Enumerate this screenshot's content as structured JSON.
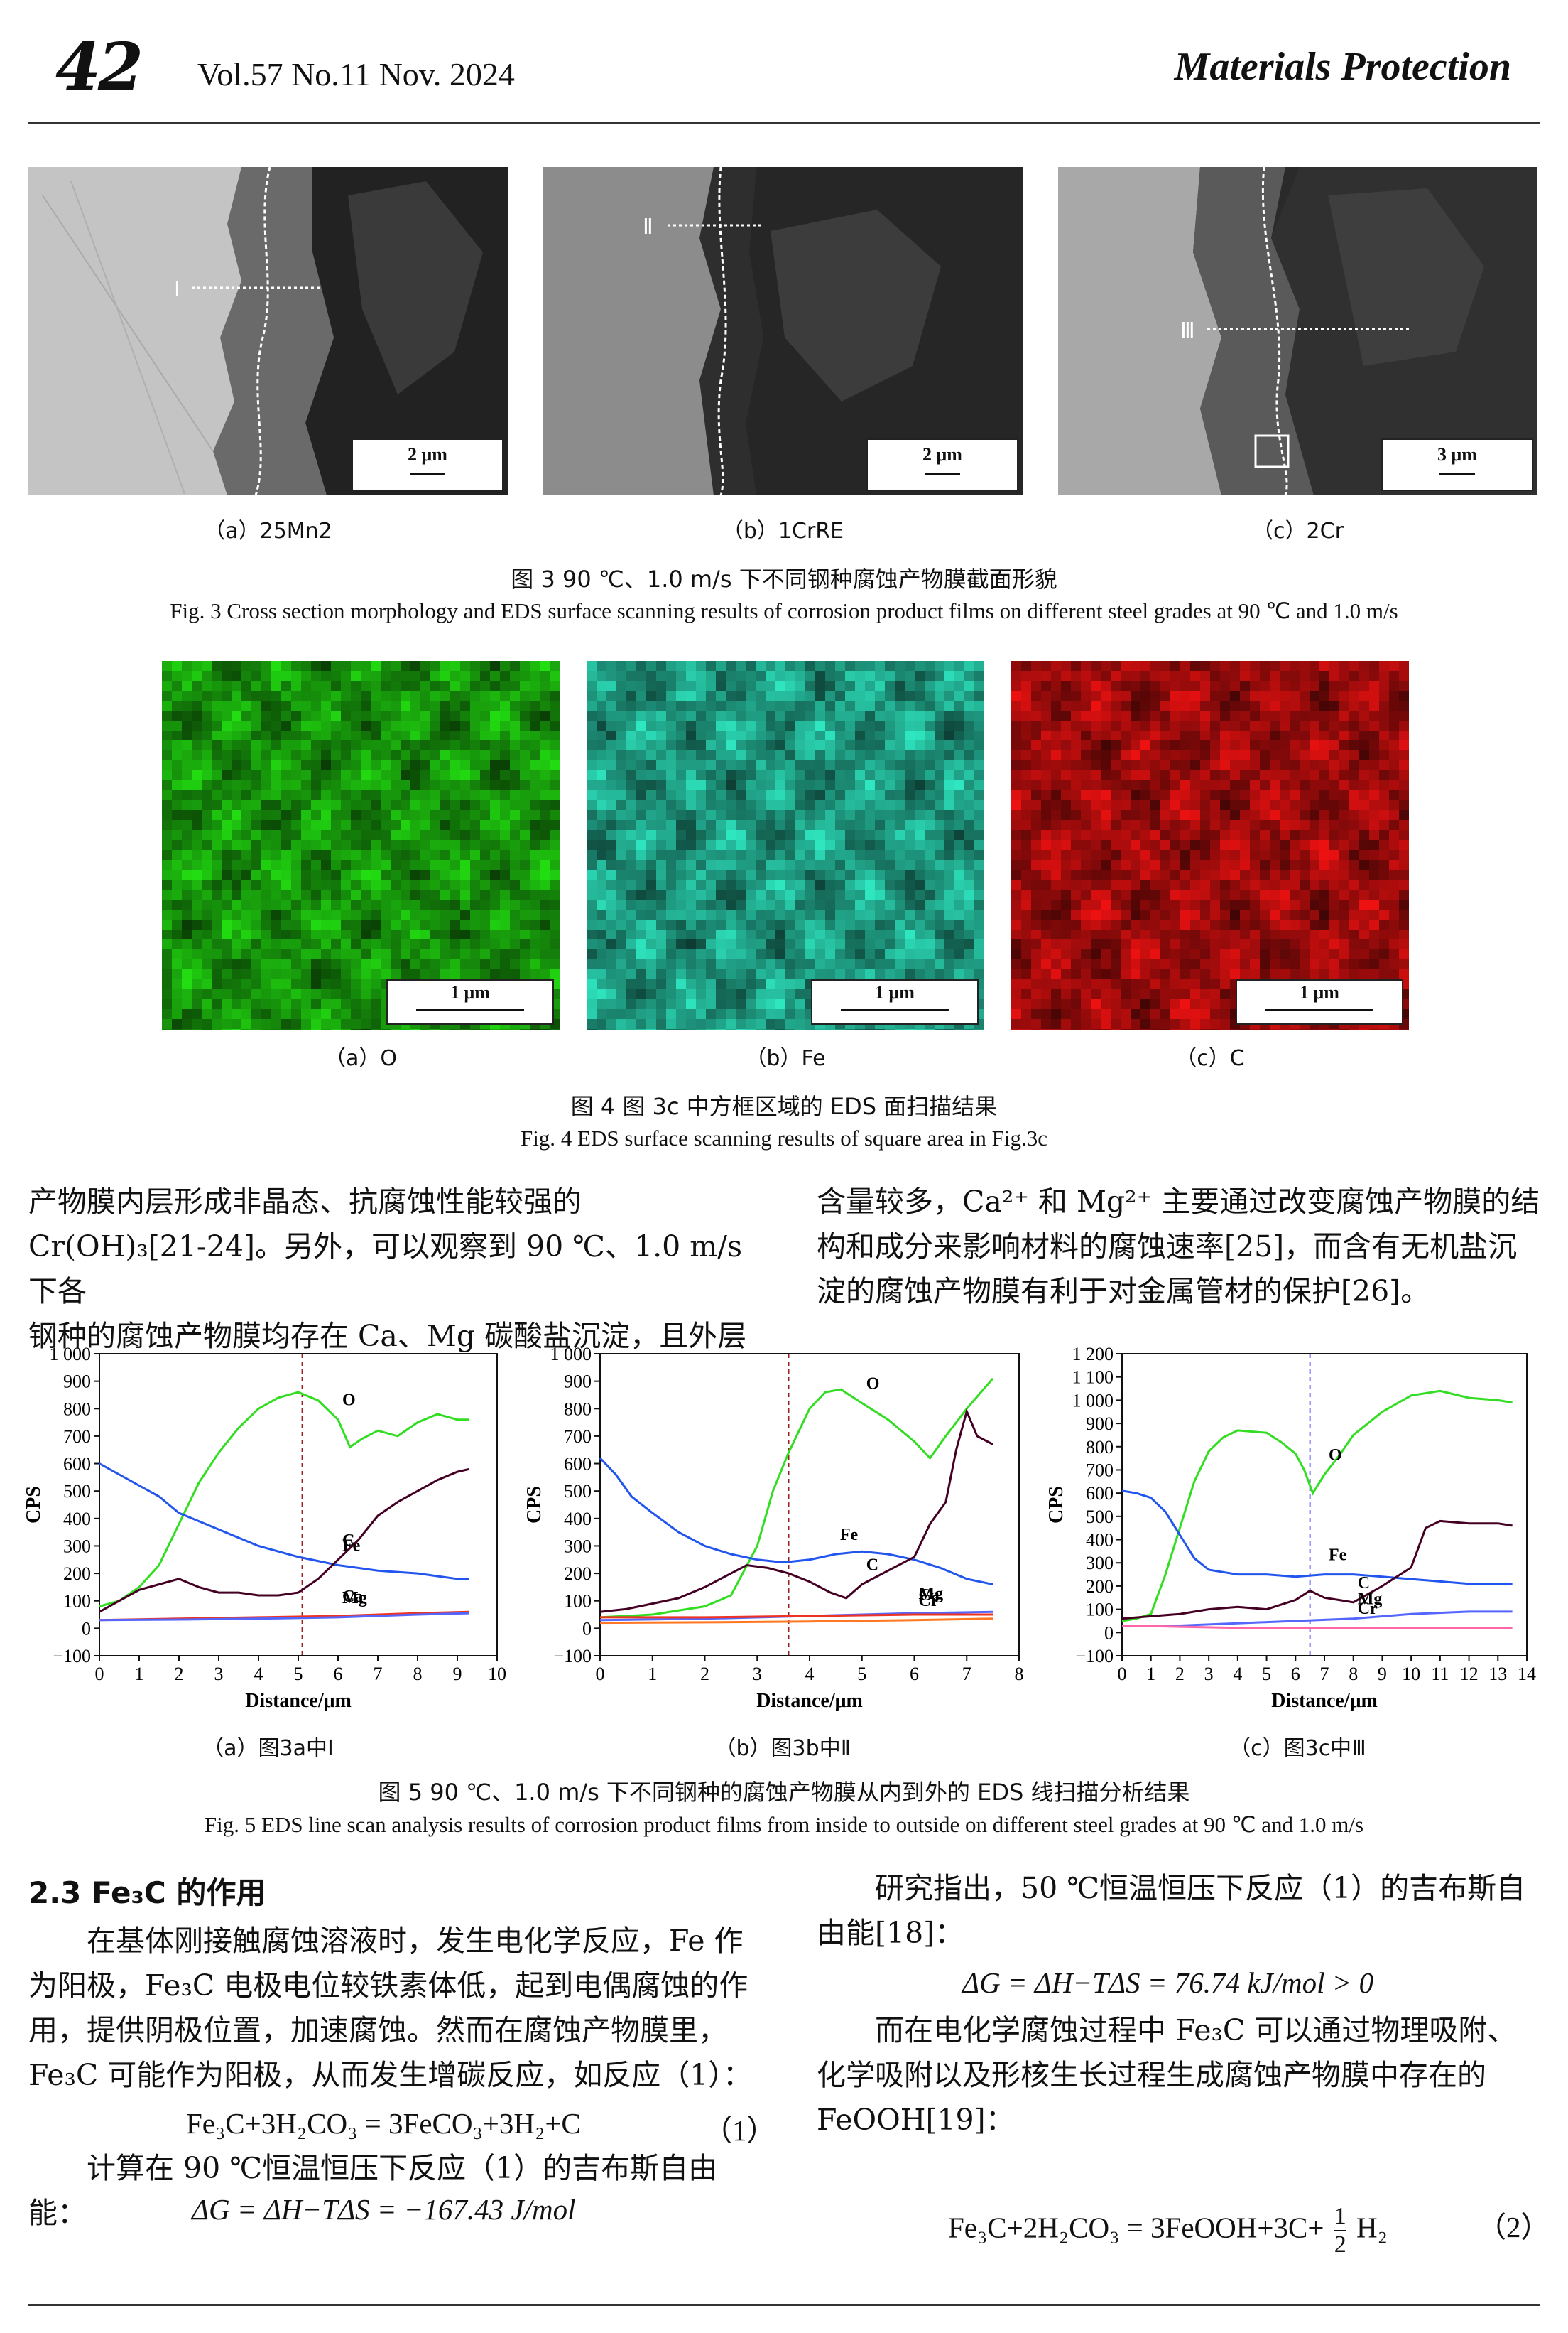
{
  "header": {
    "page_number": "42",
    "volume": "Vol.57  No.11  Nov. 2024",
    "journal": "Materials Protection"
  },
  "fig3": {
    "panels": [
      {
        "caption": "（a）25Mn2",
        "scale": "2 μm",
        "marker": "Ⅰ"
      },
      {
        "caption": "（b）1CrRE",
        "scale": "2 μm",
        "marker": "Ⅱ"
      },
      {
        "caption": "（c）2Cr",
        "scale": "3 μm",
        "marker": "Ⅲ"
      }
    ],
    "caption_zh": "图 3   90 ℃、1.0 m/s 下不同钢种腐蚀产物膜截面形貌",
    "caption_en": "Fig. 3   Cross section morphology and EDS surface scanning results of corrosion product films on different steel grades at 90 ℃ and 1.0 m/s"
  },
  "fig4": {
    "panels": [
      {
        "caption": "（a）O",
        "scale": "1 μm",
        "color": "#22dd11"
      },
      {
        "caption": "（b）Fe",
        "scale": "1 μm",
        "color": "#2ee6c0"
      },
      {
        "caption": "（c）C",
        "scale": "1 μm",
        "color": "#ee1111"
      }
    ],
    "caption_zh": "图 4   图 3c 中方框区域的 EDS 面扫描结果",
    "caption_en": "Fig. 4   EDS surface scanning results of square area in Fig.3c"
  },
  "text_top": {
    "left": [
      "产物膜内层形成非晶态、抗腐蚀性能较强的",
      "Cr(OH)₃[21-24]。另外，可以观察到 90 ℃、1.0 m/s 下各",
      "钢种的腐蚀产物膜均存在 Ca、Mg 碳酸盐沉淀，且外层"
    ],
    "right": [
      "含量较多，Ca²⁺ 和 Mg²⁺ 主要通过改变腐蚀产物膜的结",
      "构和成分来影响材料的腐蚀速率[25]，而含有无机盐沉",
      "淀的腐蚀产物膜有利于对金属管材的保护[26]。"
    ]
  },
  "fig5": {
    "caption_zh": "图 5   90 ℃、1.0 m/s 下不同钢种的腐蚀产物膜从内到外的 EDS 线扫描分析结果",
    "caption_en": "Fig. 5   EDS line scan analysis results of corrosion product films from inside to outside on different steel grades at 90 ℃ and 1.0 m/s",
    "panel_captions": [
      "（a）图3a中Ⅰ",
      "（b）图3b中Ⅱ",
      "（c）图3c中Ⅲ"
    ]
  },
  "chart_data": [
    {
      "type": "line",
      "xlabel": "Distance/μm",
      "ylabel": "CPS",
      "xlim": [
        0,
        10
      ],
      "ylim": [
        -100,
        1000
      ],
      "xticks": [
        0,
        1,
        2,
        3,
        4,
        5,
        6,
        7,
        8,
        9,
        10
      ],
      "yticks": [
        -100,
        0,
        100,
        200,
        300,
        400,
        500,
        600,
        700,
        800,
        900,
        1000
      ],
      "ytick_labels": [
        "−100",
        "0",
        "100",
        "200",
        "300",
        "400",
        "500",
        "600",
        "700",
        "800",
        "900",
        "1 000"
      ],
      "vline": 5.1,
      "series": [
        {
          "name": "O",
          "color": "#33dd22",
          "x": [
            0,
            0.5,
            1,
            1.5,
            2,
            2.5,
            3,
            3.5,
            4,
            4.5,
            5,
            5.5,
            6,
            6.3,
            6.6,
            7,
            7.5,
            8,
            8.5,
            9,
            9.3
          ],
          "y": [
            80,
            100,
            150,
            230,
            380,
            530,
            640,
            730,
            800,
            840,
            860,
            830,
            760,
            660,
            690,
            720,
            700,
            750,
            780,
            760,
            760
          ]
        },
        {
          "name": "Fe",
          "color": "#2255ee",
          "x": [
            0,
            0.5,
            1,
            1.5,
            2,
            3,
            4,
            5,
            6,
            7,
            8,
            8.5,
            9,
            9.3
          ],
          "y": [
            600,
            560,
            520,
            480,
            420,
            360,
            300,
            260,
            230,
            210,
            200,
            190,
            180,
            180
          ]
        },
        {
          "name": "C",
          "color": "#440022",
          "x": [
            0,
            0.5,
            1,
            1.5,
            2,
            2.5,
            3,
            3.5,
            4,
            4.5,
            5,
            5.5,
            6,
            6.5,
            7,
            7.5,
            8,
            8.5,
            9,
            9.3
          ],
          "y": [
            60,
            100,
            140,
            160,
            180,
            150,
            130,
            130,
            120,
            120,
            130,
            180,
            250,
            320,
            410,
            460,
            500,
            540,
            570,
            580
          ]
        },
        {
          "name": "Ca",
          "color": "#ee3322",
          "x": [
            0,
            2,
            4,
            6,
            8,
            9.3
          ],
          "y": [
            30,
            35,
            40,
            45,
            55,
            60
          ]
        },
        {
          "name": "Mg",
          "color": "#5566ff",
          "x": [
            0,
            2,
            4,
            6,
            8,
            9.3
          ],
          "y": [
            30,
            32,
            35,
            40,
            50,
            55
          ]
        }
      ]
    },
    {
      "type": "line",
      "xlabel": "Distance/μm",
      "ylabel": "CPS",
      "xlim": [
        0,
        8
      ],
      "ylim": [
        -100,
        1000
      ],
      "xticks": [
        0,
        1,
        2,
        3,
        4,
        5,
        6,
        7,
        8
      ],
      "yticks": [
        -100,
        0,
        100,
        200,
        300,
        400,
        500,
        600,
        700,
        800,
        900,
        1000
      ],
      "ytick_labels": [
        "−100",
        "0",
        "100",
        "200",
        "300",
        "400",
        "500",
        "600",
        "700",
        "800",
        "900",
        "1 000"
      ],
      "vline": 3.6,
      "series": [
        {
          "name": "O",
          "color": "#33dd22",
          "x": [
            0,
            1,
            2,
            2.5,
            3,
            3.3,
            3.6,
            4,
            4.3,
            4.6,
            5,
            5.5,
            6,
            6.3,
            6.6,
            7,
            7.5
          ],
          "y": [
            40,
            50,
            80,
            120,
            300,
            500,
            640,
            800,
            860,
            870,
            820,
            760,
            680,
            620,
            700,
            800,
            910
          ]
        },
        {
          "name": "Fe",
          "color": "#2255ee",
          "x": [
            0,
            0.3,
            0.6,
            1,
            1.5,
            2,
            2.5,
            3,
            3.5,
            4,
            4.5,
            5,
            5.5,
            6,
            6.5,
            7,
            7.5
          ],
          "y": [
            620,
            560,
            480,
            420,
            350,
            300,
            270,
            250,
            240,
            250,
            270,
            280,
            270,
            250,
            220,
            180,
            160
          ]
        },
        {
          "name": "C",
          "color": "#440022",
          "x": [
            0,
            0.5,
            1,
            1.5,
            2,
            2.5,
            2.8,
            3.2,
            3.6,
            4,
            4.4,
            4.7,
            5,
            5.5,
            6,
            6.3,
            6.6,
            6.8,
            7,
            7.2,
            7.5
          ],
          "y": [
            60,
            70,
            90,
            110,
            150,
            200,
            230,
            220,
            200,
            170,
            130,
            110,
            160,
            210,
            260,
            380,
            460,
            650,
            790,
            700,
            670
          ]
        },
        {
          "name": "Mg",
          "color": "#5566ff",
          "x": [
            0,
            2,
            4,
            6,
            7.5
          ],
          "y": [
            30,
            35,
            45,
            55,
            60
          ]
        },
        {
          "name": "Ca",
          "color": "#ee3322",
          "x": [
            0,
            2,
            4,
            6,
            7.5
          ],
          "y": [
            40,
            40,
            45,
            50,
            50
          ]
        },
        {
          "name": "Cr",
          "color": "#ff7722",
          "x": [
            0,
            2,
            4,
            6,
            7.5
          ],
          "y": [
            20,
            22,
            25,
            30,
            35
          ]
        }
      ]
    },
    {
      "type": "line",
      "xlabel": "Distance/μm",
      "ylabel": "CPS",
      "xlim": [
        0,
        14
      ],
      "ylim": [
        -100,
        1200
      ],
      "xticks": [
        0,
        1,
        2,
        3,
        4,
        5,
        6,
        7,
        8,
        9,
        10,
        11,
        12,
        13,
        14
      ],
      "yticks": [
        -100,
        0,
        100,
        200,
        300,
        400,
        500,
        600,
        700,
        800,
        900,
        1000,
        1100,
        1200
      ],
      "ytick_labels": [
        "−100",
        "0",
        "100",
        "200",
        "300",
        "400",
        "500",
        "600",
        "700",
        "800",
        "900",
        "1 000",
        "1 100",
        "1 200"
      ],
      "vline": 6.5,
      "series": [
        {
          "name": "O",
          "color": "#33dd22",
          "x": [
            0,
            0.5,
            1,
            1.5,
            2,
            2.5,
            3,
            3.5,
            4,
            5,
            5.5,
            6,
            6.3,
            6.6,
            7,
            7.5,
            8,
            8.5,
            9,
            10,
            11,
            12,
            13,
            13.5
          ],
          "y": [
            50,
            60,
            80,
            250,
            450,
            650,
            780,
            840,
            870,
            860,
            820,
            770,
            700,
            600,
            680,
            760,
            850,
            900,
            950,
            1020,
            1040,
            1010,
            1000,
            990
          ]
        },
        {
          "name": "Fe",
          "color": "#2255ee",
          "x": [
            0,
            0.5,
            1,
            1.5,
            2,
            2.5,
            3,
            3.5,
            4,
            5,
            6,
            7,
            8,
            9,
            10,
            11,
            12,
            13,
            13.5
          ],
          "y": [
            610,
            600,
            580,
            520,
            420,
            320,
            270,
            260,
            250,
            250,
            240,
            250,
            250,
            240,
            230,
            220,
            210,
            210,
            210
          ]
        },
        {
          "name": "C",
          "color": "#440022",
          "x": [
            0,
            1,
            2,
            3,
            4,
            5,
            6,
            6.5,
            7,
            7.5,
            8,
            9,
            10,
            10.5,
            11,
            12,
            13,
            13.5
          ],
          "y": [
            60,
            70,
            80,
            100,
            110,
            100,
            140,
            180,
            150,
            140,
            130,
            200,
            280,
            450,
            480,
            470,
            470,
            460
          ]
        },
        {
          "name": "Mg",
          "color": "#5566ff",
          "x": [
            0,
            2,
            4,
            6,
            8,
            10,
            12,
            13.5
          ],
          "y": [
            30,
            30,
            40,
            50,
            60,
            80,
            90,
            90
          ]
        },
        {
          "name": "Cr",
          "color": "#ff66aa",
          "x": [
            0,
            2,
            4,
            6,
            8,
            10,
            12,
            13.5
          ],
          "y": [
            30,
            25,
            20,
            20,
            20,
            20,
            20,
            20
          ]
        }
      ]
    }
  ],
  "section": {
    "heading": "2.3   Fe₃C 的作用",
    "left_paras": [
      "　　在基体刚接触腐蚀溶液时，发生电化学反应，Fe 作",
      "为阳极，Fe₃C 电极电位较铁素体低，起到电偶腐蚀的作",
      "用，提供阴极位置，加速腐蚀。然而在腐蚀产物膜里，",
      "Fe₃C 可能作为阳极，从而发生增碳反应，如反应（1）："
    ],
    "eq1": "Fe₃C+3H₂CO₃ = 3FeCO₃+3H₂+C",
    "eq1_num": "（1）",
    "left_after": "　　计算在 90 ℃恒温恒压下反应（1）的吉布斯自由能：",
    "eq_g1": "ΔG = ΔH−TΔS = −167.43 J/mol",
    "right_paras": [
      "　　研究指出，50 ℃恒温恒压下反应（1）的吉布斯自",
      "由能[18]："
    ],
    "eq_g2": "ΔG = ΔH−TΔS = 76.74 kJ/mol  > 0",
    "right_after": [
      "　　而在电化学腐蚀过程中 Fe₃C 可以通过物理吸附、",
      "化学吸附以及形核生长过程生成腐蚀产物膜中存在的",
      "FeOOH[19]："
    ],
    "eq2": "Fe₃C+2H₂CO₃ = 3FeOOH+3C+",
    "eq2_frac_num": "1",
    "eq2_frac_den": "2",
    "eq2_tail": "H₂",
    "eq2_num": "（2）"
  }
}
